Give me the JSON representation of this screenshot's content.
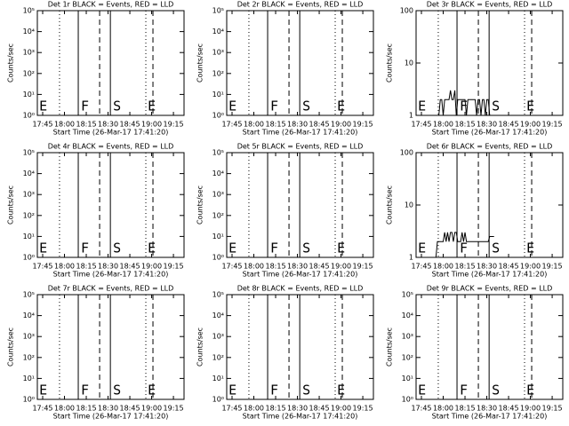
{
  "chart_data": [
    {
      "type": "line",
      "title": "Det 1r BLACK = Events, RED = LLD",
      "ylabel": "Counts/sec",
      "xlabel": "Start Time (26-Mar-17 17:41:20)",
      "log": true,
      "xlim": [
        41.33,
        142.3
      ],
      "xticks": [
        {
          "value": 45,
          "label": "17:45"
        },
        {
          "value": 60,
          "label": "18:00"
        },
        {
          "value": 75,
          "label": "18:15"
        },
        {
          "value": 90,
          "label": "18:30"
        },
        {
          "value": 105,
          "label": "18:45"
        },
        {
          "value": 120,
          "label": "19:00"
        },
        {
          "value": 135,
          "label": "19:15"
        }
      ],
      "ylim": [
        1,
        100000
      ],
      "yticks": [
        {
          "value": 1,
          "label": "10⁰"
        },
        {
          "value": 10,
          "label": "10¹"
        },
        {
          "value": 100,
          "label": "10²"
        },
        {
          "value": 1000,
          "label": "10³"
        },
        {
          "value": 10000,
          "label": "10⁴"
        },
        {
          "value": 100000,
          "label": "10⁵"
        }
      ],
      "markers": [
        {
          "x": 56.6,
          "style": "dotted"
        },
        {
          "x": 69.5,
          "style": "solid"
        },
        {
          "x": 84.2,
          "style": "dashed"
        },
        {
          "x": 91.6,
          "style": "solid"
        },
        {
          "x": 116,
          "style": "dotted"
        },
        {
          "x": 120.9,
          "style": "dashed"
        }
      ],
      "annotations": [
        {
          "x": 42.6,
          "text": "E"
        },
        {
          "x": 71.3,
          "text": "F"
        },
        {
          "x": 93.4,
          "text": "S"
        },
        {
          "x": 117.3,
          "text": "E"
        }
      ]
    },
    {
      "type": "line",
      "title": "Det 2r BLACK = Events, RED = LLD",
      "ylabel": "Counts/sec",
      "xlabel": "Start Time (26-Mar-17 17:41:20)",
      "log": true,
      "xlim": [
        41.33,
        142.3
      ],
      "xticks": [
        {
          "value": 45,
          "label": "17:45"
        },
        {
          "value": 60,
          "label": "18:00"
        },
        {
          "value": 75,
          "label": "18:15"
        },
        {
          "value": 90,
          "label": "18:30"
        },
        {
          "value": 105,
          "label": "18:45"
        },
        {
          "value": 120,
          "label": "19:00"
        },
        {
          "value": 135,
          "label": "19:15"
        }
      ],
      "ylim": [
        1,
        100000
      ],
      "yticks": [
        {
          "value": 1,
          "label": "10⁰"
        },
        {
          "value": 10,
          "label": "10¹"
        },
        {
          "value": 100,
          "label": "10²"
        },
        {
          "value": 1000,
          "label": "10³"
        },
        {
          "value": 10000,
          "label": "10⁴"
        },
        {
          "value": 100000,
          "label": "10⁵"
        }
      ],
      "markers": [
        {
          "x": 56.6,
          "style": "dotted"
        },
        {
          "x": 69.5,
          "style": "solid"
        },
        {
          "x": 84.2,
          "style": "dashed"
        },
        {
          "x": 91.6,
          "style": "solid"
        },
        {
          "x": 116,
          "style": "dotted"
        },
        {
          "x": 120.9,
          "style": "dashed"
        }
      ],
      "annotations": [
        {
          "x": 42.6,
          "text": "E"
        },
        {
          "x": 71.3,
          "text": "F"
        },
        {
          "x": 93.4,
          "text": "S"
        },
        {
          "x": 117.3,
          "text": "E"
        }
      ]
    },
    {
      "type": "line",
      "title": "Det 3r BLACK = Events, RED = LLD",
      "ylabel": "Counts/sec",
      "xlabel": "Start Time (26-Mar-17 17:41:20)",
      "log": true,
      "xlim": [
        41.33,
        142.3
      ],
      "xticks": [
        {
          "value": 45,
          "label": "17:45"
        },
        {
          "value": 60,
          "label": "18:00"
        },
        {
          "value": 75,
          "label": "18:15"
        },
        {
          "value": 90,
          "label": "18:30"
        },
        {
          "value": 105,
          "label": "18:45"
        },
        {
          "value": 120,
          "label": "19:00"
        },
        {
          "value": 135,
          "label": "19:15"
        }
      ],
      "ylim": [
        1,
        100
      ],
      "yticks": [
        1,
        10,
        100
      ],
      "markers": [
        {
          "x": 56.6,
          "style": "dotted"
        },
        {
          "x": 69.5,
          "style": "solid"
        },
        {
          "x": 84.2,
          "style": "dashed"
        },
        {
          "x": 91.6,
          "style": "solid"
        },
        {
          "x": 116,
          "style": "dotted"
        },
        {
          "x": 120.9,
          "style": "dashed"
        }
      ],
      "annotations": [
        {
          "x": 42.6,
          "text": "E"
        },
        {
          "x": 71.3,
          "text": "F"
        },
        {
          "x": 93.4,
          "text": "S"
        },
        {
          "x": 117.3,
          "text": "E"
        }
      ],
      "series": [
        {
          "color": "#000000",
          "x": [
            57,
            58,
            59,
            60,
            61,
            62,
            63,
            64,
            65,
            66,
            67,
            68,
            69,
            70,
            71,
            72,
            73,
            74,
            75,
            76,
            77,
            78,
            79,
            80,
            81,
            82,
            83,
            84,
            85,
            86,
            87,
            88,
            89,
            90,
            91,
            92
          ],
          "values": [
            1,
            2,
            2,
            1,
            2,
            2,
            2,
            2,
            3,
            2,
            2,
            3,
            1,
            2,
            2,
            2,
            2,
            2,
            2,
            1,
            2,
            2,
            2,
            2,
            2,
            2,
            1,
            2,
            2,
            1,
            2,
            2,
            1,
            2,
            2,
            1
          ]
        }
      ]
    },
    {
      "type": "line",
      "title": "Det 4r BLACK = Events, RED = LLD",
      "ylabel": "Counts/sec",
      "xlabel": "Start Time (26-Mar-17 17:41:20)",
      "log": true,
      "xlim": [
        41.33,
        142.3
      ],
      "xticks": [
        {
          "value": 45,
          "label": "17:45"
        },
        {
          "value": 60,
          "label": "18:00"
        },
        {
          "value": 75,
          "label": "18:15"
        },
        {
          "value": 90,
          "label": "18:30"
        },
        {
          "value": 105,
          "label": "18:45"
        },
        {
          "value": 120,
          "label": "19:00"
        },
        {
          "value": 135,
          "label": "19:15"
        }
      ],
      "ylim": [
        1,
        100000
      ],
      "yticks": [
        {
          "value": 1,
          "label": "10⁰"
        },
        {
          "value": 10,
          "label": "10¹"
        },
        {
          "value": 100,
          "label": "10²"
        },
        {
          "value": 1000,
          "label": "10³"
        },
        {
          "value": 10000,
          "label": "10⁴"
        },
        {
          "value": 100000,
          "label": "10⁵"
        }
      ],
      "markers": [
        {
          "x": 56.6,
          "style": "dotted"
        },
        {
          "x": 69.5,
          "style": "solid"
        },
        {
          "x": 84.2,
          "style": "dashed"
        },
        {
          "x": 91.6,
          "style": "solid"
        },
        {
          "x": 116,
          "style": "dotted"
        },
        {
          "x": 120.9,
          "style": "dashed"
        }
      ],
      "annotations": [
        {
          "x": 42.6,
          "text": "E"
        },
        {
          "x": 71.3,
          "text": "F"
        },
        {
          "x": 93.4,
          "text": "S"
        },
        {
          "x": 117.3,
          "text": "E"
        }
      ]
    },
    {
      "type": "line",
      "title": "Det 5r BLACK = Events, RED = LLD",
      "ylabel": "Counts/sec",
      "xlabel": "Start Time (26-Mar-17 17:41:20)",
      "log": true,
      "xlim": [
        41.33,
        142.3
      ],
      "xticks": [
        {
          "value": 45,
          "label": "17:45"
        },
        {
          "value": 60,
          "label": "18:00"
        },
        {
          "value": 75,
          "label": "18:15"
        },
        {
          "value": 90,
          "label": "18:30"
        },
        {
          "value": 105,
          "label": "18:45"
        },
        {
          "value": 120,
          "label": "19:00"
        },
        {
          "value": 135,
          "label": "19:15"
        }
      ],
      "ylim": [
        1,
        100000
      ],
      "yticks": [
        {
          "value": 1,
          "label": "10⁰"
        },
        {
          "value": 10,
          "label": "10¹"
        },
        {
          "value": 100,
          "label": "10²"
        },
        {
          "value": 1000,
          "label": "10³"
        },
        {
          "value": 10000,
          "label": "10⁴"
        },
        {
          "value": 100000,
          "label": "10⁵"
        }
      ],
      "markers": [
        {
          "x": 56.6,
          "style": "dotted"
        },
        {
          "x": 69.5,
          "style": "solid"
        },
        {
          "x": 84.2,
          "style": "dashed"
        },
        {
          "x": 91.6,
          "style": "solid"
        },
        {
          "x": 116,
          "style": "dotted"
        },
        {
          "x": 120.9,
          "style": "dashed"
        }
      ],
      "annotations": [
        {
          "x": 42.6,
          "text": "E"
        },
        {
          "x": 71.3,
          "text": "F"
        },
        {
          "x": 93.4,
          "text": "S"
        },
        {
          "x": 117.3,
          "text": "E"
        }
      ]
    },
    {
      "type": "line",
      "title": "Det 6r BLACK = Events, RED = LLD",
      "ylabel": "Counts/sec",
      "xlabel": "Start Time (26-Mar-17 17:41:20)",
      "log": true,
      "xlim": [
        41.33,
        142.3
      ],
      "xticks": [
        {
          "value": 45,
          "label": "17:45"
        },
        {
          "value": 60,
          "label": "18:00"
        },
        {
          "value": 75,
          "label": "18:15"
        },
        {
          "value": 90,
          "label": "18:30"
        },
        {
          "value": 105,
          "label": "18:45"
        },
        {
          "value": 120,
          "label": "19:00"
        },
        {
          "value": 135,
          "label": "19:15"
        }
      ],
      "ylim": [
        1,
        100
      ],
      "yticks": [
        1,
        10,
        100
      ],
      "markers": [
        {
          "x": 56.6,
          "style": "dotted"
        },
        {
          "x": 69.5,
          "style": "solid"
        },
        {
          "x": 84.2,
          "style": "dashed"
        },
        {
          "x": 91.6,
          "style": "solid"
        },
        {
          "x": 116,
          "style": "dotted"
        },
        {
          "x": 120.9,
          "style": "dashed"
        }
      ],
      "annotations": [
        {
          "x": 42.6,
          "text": "E"
        },
        {
          "x": 71.3,
          "text": "F"
        },
        {
          "x": 93.4,
          "text": "S"
        },
        {
          "x": 117.3,
          "text": "E"
        }
      ],
      "series": [
        {
          "color": "#000000",
          "x": [
            55,
            56,
            57,
            58,
            59,
            60,
            61,
            62,
            63,
            64,
            65,
            66,
            67,
            68,
            69,
            70,
            71,
            72,
            73,
            74,
            75,
            76,
            77,
            78,
            79,
            80,
            81,
            82,
            83,
            84,
            85,
            86,
            87,
            88,
            89,
            90,
            91,
            92,
            93,
            94,
            95
          ],
          "values": [
            1,
            2,
            2,
            2,
            2,
            2,
            3,
            2,
            3,
            2,
            3,
            3,
            2,
            3,
            3,
            2,
            2,
            2,
            3,
            2,
            3,
            2,
            2,
            2,
            2,
            2,
            2,
            2,
            2,
            2,
            2,
            2,
            2,
            2,
            2,
            2,
            2,
            2.5,
            2.5,
            2.5,
            2.5
          ]
        }
      ]
    },
    {
      "type": "line",
      "title": "Det 7r BLACK = Events, RED = LLD",
      "ylabel": "Counts/sec",
      "xlabel": "Start Time (26-Mar-17 17:41:20)",
      "log": true,
      "xlim": [
        41.33,
        142.3
      ],
      "xticks": [
        {
          "value": 45,
          "label": "17:45"
        },
        {
          "value": 60,
          "label": "18:00"
        },
        {
          "value": 75,
          "label": "18:15"
        },
        {
          "value": 90,
          "label": "18:30"
        },
        {
          "value": 105,
          "label": "18:45"
        },
        {
          "value": 120,
          "label": "19:00"
        },
        {
          "value": 135,
          "label": "19:15"
        }
      ],
      "ylim": [
        1,
        100000
      ],
      "yticks": [
        {
          "value": 1,
          "label": "10⁰"
        },
        {
          "value": 10,
          "label": "10¹"
        },
        {
          "value": 100,
          "label": "10²"
        },
        {
          "value": 1000,
          "label": "10³"
        },
        {
          "value": 10000,
          "label": "10⁴"
        },
        {
          "value": 100000,
          "label": "10⁵"
        }
      ],
      "markers": [
        {
          "x": 56.6,
          "style": "dotted"
        },
        {
          "x": 69.5,
          "style": "solid"
        },
        {
          "x": 84.2,
          "style": "dashed"
        },
        {
          "x": 91.6,
          "style": "solid"
        },
        {
          "x": 116,
          "style": "dotted"
        },
        {
          "x": 120.9,
          "style": "dashed"
        }
      ],
      "annotations": [
        {
          "x": 42.6,
          "text": "E"
        },
        {
          "x": 71.3,
          "text": "F"
        },
        {
          "x": 93.4,
          "text": "S"
        },
        {
          "x": 117.3,
          "text": "E"
        }
      ]
    },
    {
      "type": "line",
      "title": "Det 8r BLACK = Events, RED = LLD",
      "ylabel": "Counts/sec",
      "xlabel": "Start Time (26-Mar-17 17:41:20)",
      "log": true,
      "xlim": [
        41.33,
        142.3
      ],
      "xticks": [
        {
          "value": 45,
          "label": "17:45"
        },
        {
          "value": 60,
          "label": "18:00"
        },
        {
          "value": 75,
          "label": "18:15"
        },
        {
          "value": 90,
          "label": "18:30"
        },
        {
          "value": 105,
          "label": "18:45"
        },
        {
          "value": 120,
          "label": "19:00"
        },
        {
          "value": 135,
          "label": "19:15"
        }
      ],
      "ylim": [
        1,
        100000
      ],
      "yticks": [
        {
          "value": 1,
          "label": "10⁰"
        },
        {
          "value": 10,
          "label": "10¹"
        },
        {
          "value": 100,
          "label": "10²"
        },
        {
          "value": 1000,
          "label": "10³"
        },
        {
          "value": 10000,
          "label": "10⁴"
        },
        {
          "value": 100000,
          "label": "10⁵"
        }
      ],
      "markers": [
        {
          "x": 56.6,
          "style": "dotted"
        },
        {
          "x": 69.5,
          "style": "solid"
        },
        {
          "x": 84.2,
          "style": "dashed"
        },
        {
          "x": 91.6,
          "style": "solid"
        },
        {
          "x": 116,
          "style": "dotted"
        },
        {
          "x": 120.9,
          "style": "dashed"
        }
      ],
      "annotations": [
        {
          "x": 42.6,
          "text": "E"
        },
        {
          "x": 71.3,
          "text": "F"
        },
        {
          "x": 93.4,
          "text": "S"
        },
        {
          "x": 117.3,
          "text": "E"
        }
      ]
    },
    {
      "type": "line",
      "title": "Det 9r BLACK = Events, RED = LLD",
      "ylabel": "Counts/sec",
      "xlabel": "Start Time (26-Mar-17 17:41:20)",
      "log": true,
      "xlim": [
        41.33,
        142.3
      ],
      "xticks": [
        {
          "value": 45,
          "label": "17:45"
        },
        {
          "value": 60,
          "label": "18:00"
        },
        {
          "value": 75,
          "label": "18:15"
        },
        {
          "value": 90,
          "label": "18:30"
        },
        {
          "value": 105,
          "label": "18:45"
        },
        {
          "value": 120,
          "label": "19:00"
        },
        {
          "value": 135,
          "label": "19:15"
        }
      ],
      "ylim": [
        1,
        100000
      ],
      "yticks": [
        {
          "value": 1,
          "label": "10⁰"
        },
        {
          "value": 10,
          "label": "10¹"
        },
        {
          "value": 100,
          "label": "10²"
        },
        {
          "value": 1000,
          "label": "10³"
        },
        {
          "value": 10000,
          "label": "10⁴"
        },
        {
          "value": 100000,
          "label": "10⁵"
        }
      ],
      "markers": [
        {
          "x": 56.6,
          "style": "dotted"
        },
        {
          "x": 69.5,
          "style": "solid"
        },
        {
          "x": 84.2,
          "style": "dashed"
        },
        {
          "x": 91.6,
          "style": "solid"
        },
        {
          "x": 116,
          "style": "dotted"
        },
        {
          "x": 120.9,
          "style": "dashed"
        }
      ],
      "annotations": [
        {
          "x": 42.6,
          "text": "E"
        },
        {
          "x": 71.3,
          "text": "F"
        },
        {
          "x": 93.4,
          "text": "S"
        },
        {
          "x": 117.3,
          "text": "E"
        }
      ]
    }
  ]
}
